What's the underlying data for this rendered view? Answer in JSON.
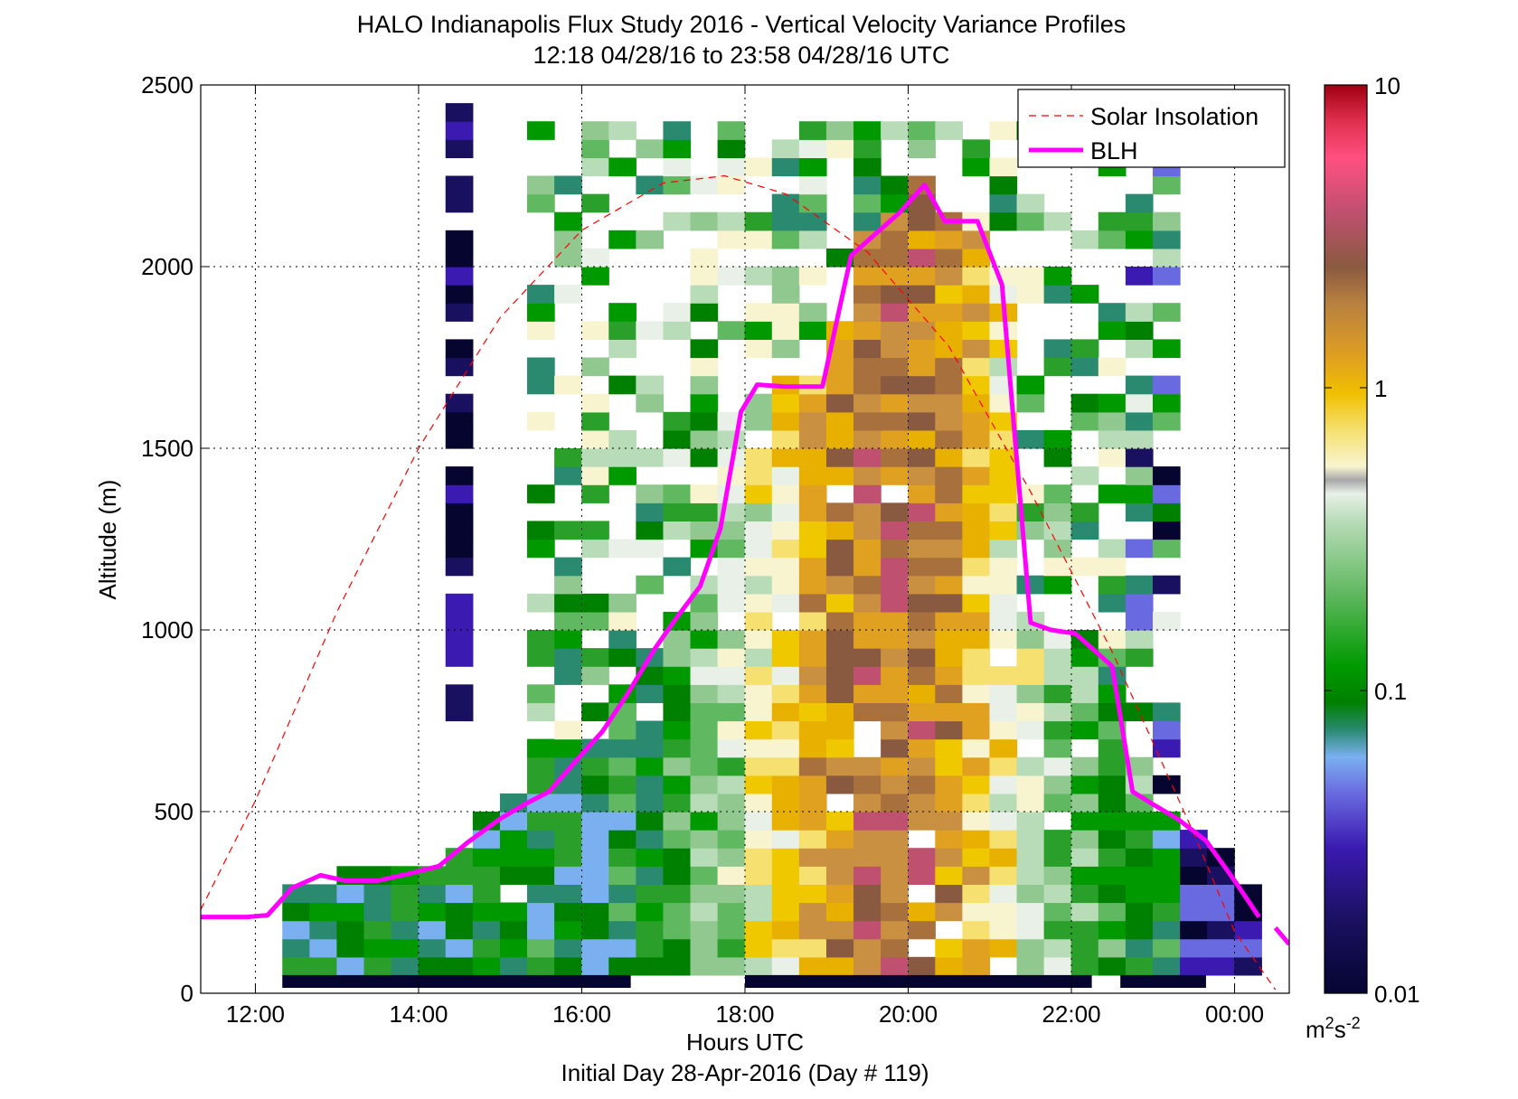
{
  "chart_data": {
    "type": "heatmap",
    "title": "HALO Indianapolis Flux Study 2016 - Vertical Velocity Variance Profiles",
    "subtitle": "12:18 04/28/16 to 23:58 04/28/16  UTC",
    "xlabel": "Hours UTC",
    "xlabel_sub": "Initial Day 28-Apr-2016 (Day # 119)",
    "ylabel": "Altitude (m)",
    "xlim": [
      11.33,
      24.67
    ],
    "ylim": [
      0,
      2500
    ],
    "x_ticks": [
      12,
      14,
      16,
      18,
      20,
      22,
      24
    ],
    "x_tick_labels": [
      "12:00",
      "14:00",
      "16:00",
      "18:00",
      "20:00",
      "22:00",
      "00:00"
    ],
    "y_ticks": [
      0,
      500,
      1000,
      1500,
      2000,
      2500
    ],
    "y_tick_labels": [
      "0",
      "500",
      "1000",
      "1500",
      "2000",
      "2500"
    ],
    "grid": true,
    "legend_position": "top-right",
    "colorbar": {
      "scale": "log",
      "min": 0.01,
      "max": 10,
      "ticks": [
        0.01,
        0.1,
        1,
        10
      ],
      "tick_labels": [
        "0.01",
        "0.1",
        "1",
        "10"
      ],
      "unit_label": "m",
      "unit_sup": "2",
      "unit_label2": "s",
      "unit_sup2": "-2"
    },
    "series": [
      {
        "name": "Solar Insolation",
        "style": "dashed",
        "color": "#ff0000",
        "x": [
          11.33,
          12.0,
          13.0,
          14.0,
          15.0,
          16.0,
          17.0,
          17.75,
          18.5,
          19.5,
          20.5,
          21.5,
          22.5,
          23.5,
          24.0,
          24.5
        ],
        "y": [
          230,
          530,
          1050,
          1500,
          1860,
          2100,
          2230,
          2250,
          2200,
          2040,
          1780,
          1380,
          940,
          440,
          170,
          10
        ]
      },
      {
        "name": "BLH",
        "style": "solid",
        "color": "#ff00ff",
        "x": [
          11.33,
          11.9,
          12.15,
          12.45,
          12.8,
          13.1,
          13.5,
          13.9,
          14.25,
          14.6,
          15.0,
          15.3,
          15.6,
          15.95,
          16.25,
          16.55,
          16.9,
          17.15,
          17.45,
          17.7,
          17.95,
          18.15,
          18.5,
          18.95,
          19.3,
          19.6,
          19.9,
          20.2,
          20.45,
          20.85,
          21.15,
          21.5,
          21.75,
          22.05,
          22.5,
          22.75,
          23.0,
          23.3,
          23.65,
          24.0,
          24.3
        ],
        "y": [
          210,
          210,
          215,
          290,
          325,
          310,
          310,
          330,
          350,
          415,
          480,
          520,
          555,
          645,
          720,
          820,
          950,
          1030,
          1120,
          1280,
          1600,
          1675,
          1670,
          1670,
          2030,
          2090,
          2150,
          2225,
          2125,
          2125,
          1950,
          1020,
          1000,
          990,
          900,
          555,
          520,
          480,
          420,
          310,
          210
        ]
      }
    ],
    "segments": [
      {
        "name": "BLH",
        "x": [
          24.5,
          24.67
        ],
        "y": [
          180,
          135
        ]
      }
    ]
  }
}
